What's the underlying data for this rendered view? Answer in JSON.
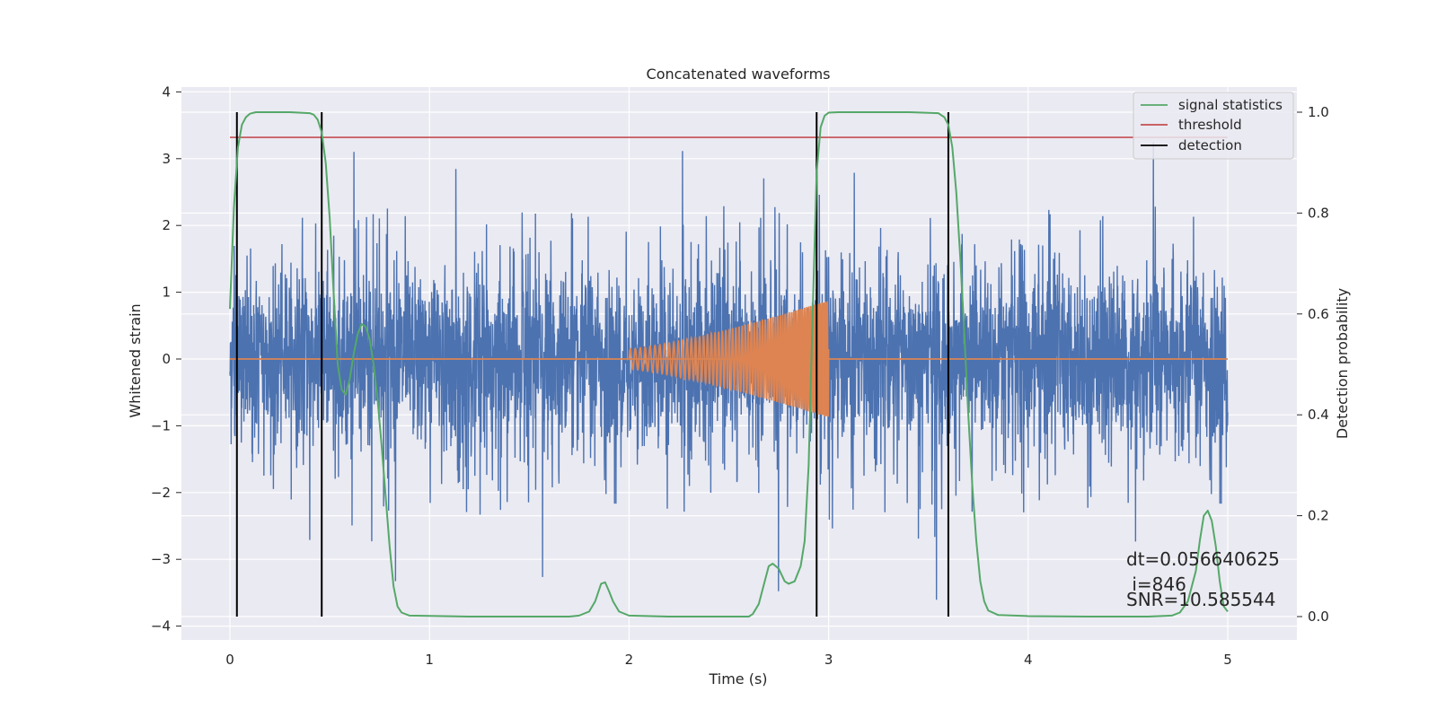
{
  "chart_data": {
    "type": "line",
    "title": "Concatenated waveforms",
    "xlabel": "Time (s)",
    "ylabel_left": "Whitened strain",
    "ylabel_right": "Detection probability",
    "xlim": [
      -0.25,
      5.35
    ],
    "ylim_left": [
      -4.2,
      4.1
    ],
    "ylim_right": [
      -0.05,
      1.035
    ],
    "x_ticks": [
      0,
      1,
      2,
      3,
      4,
      5
    ],
    "y_left_ticks": [
      -4,
      -3,
      -2,
      -1,
      0,
      1,
      2,
      3,
      4
    ],
    "y_right_ticks": [
      0.0,
      0.2,
      0.4,
      0.6,
      0.8,
      1.0
    ],
    "y_left_tick_labels": [
      "−4",
      "−3",
      "−2",
      "−1",
      "0",
      "1",
      "2",
      "3",
      "4"
    ],
    "y_right_tick_labels": [
      "0.0",
      "0.2",
      "0.4",
      "0.6",
      "0.8",
      "1.0"
    ],
    "grid": true,
    "legend_position": "top-right",
    "colors": {
      "background": "#eaeaf2",
      "grid": "#ffffff",
      "strain": "#4c72b0",
      "template": "#dd8452",
      "signal_statistics": "#55a868",
      "threshold": "#c44e52",
      "detection": "#000000"
    },
    "series": [
      {
        "name": "",
        "axis": "left",
        "kind": "noise",
        "x_range": [
          0,
          5
        ],
        "core_amplitude": 0.8,
        "typical_peak": 1.9,
        "max_peak": 3.7,
        "min_value": -3.8
      },
      {
        "name": "",
        "axis": "left",
        "kind": "chirp",
        "baseline_x": [
          0,
          5
        ],
        "baseline_y": 0,
        "chirp_x": [
          2.0,
          3.0
        ],
        "start_amplitude": 0.15,
        "end_amplitude": 0.88,
        "start_frequency_hz": 40,
        "end_frequency_hz": 115
      },
      {
        "name": "signal statistics",
        "axis": "right",
        "x": [
          0.0,
          0.02,
          0.04,
          0.06,
          0.08,
          0.1,
          0.13,
          0.2,
          0.3,
          0.4,
          0.42,
          0.44,
          0.46,
          0.48,
          0.5,
          0.52,
          0.54,
          0.56,
          0.58,
          0.6,
          0.62,
          0.64,
          0.66,
          0.68,
          0.7,
          0.72,
          0.74,
          0.76,
          0.78,
          0.8,
          0.82,
          0.84,
          0.86,
          0.9,
          1.2,
          1.5,
          1.7,
          1.75,
          1.8,
          1.83,
          1.86,
          1.88,
          1.9,
          1.92,
          1.95,
          2.0,
          2.2,
          2.4,
          2.6,
          2.62,
          2.65,
          2.68,
          2.7,
          2.72,
          2.75,
          2.78,
          2.8,
          2.83,
          2.86,
          2.88,
          2.9,
          2.92,
          2.94,
          2.96,
          2.98,
          3.0,
          3.05,
          3.2,
          3.4,
          3.55,
          3.58,
          3.6,
          3.62,
          3.64,
          3.66,
          3.68,
          3.7,
          3.72,
          3.74,
          3.76,
          3.78,
          3.8,
          3.85,
          4.0,
          4.3,
          4.6,
          4.72,
          4.76,
          4.8,
          4.84,
          4.86,
          4.88,
          4.9,
          4.92,
          4.94,
          4.96,
          4.98,
          5.0
        ],
        "y": [
          0.61,
          0.81,
          0.93,
          0.975,
          0.99,
          0.997,
          1.0,
          1.0,
          1.0,
          0.998,
          0.995,
          0.985,
          0.96,
          0.9,
          0.79,
          0.64,
          0.5,
          0.45,
          0.44,
          0.47,
          0.52,
          0.56,
          0.58,
          0.575,
          0.55,
          0.5,
          0.43,
          0.34,
          0.24,
          0.14,
          0.06,
          0.02,
          0.008,
          0.002,
          0.0,
          0.0,
          0.0,
          0.002,
          0.01,
          0.03,
          0.065,
          0.068,
          0.05,
          0.03,
          0.01,
          0.002,
          0.0,
          0.0,
          0.0,
          0.005,
          0.025,
          0.07,
          0.1,
          0.105,
          0.095,
          0.07,
          0.065,
          0.07,
          0.1,
          0.15,
          0.3,
          0.6,
          0.88,
          0.97,
          0.993,
          0.999,
          1.0,
          1.0,
          1.0,
          0.998,
          0.99,
          0.975,
          0.93,
          0.84,
          0.71,
          0.56,
          0.4,
          0.26,
          0.15,
          0.07,
          0.03,
          0.012,
          0.003,
          0.001,
          0.0,
          0.0,
          0.002,
          0.008,
          0.03,
          0.09,
          0.15,
          0.2,
          0.21,
          0.19,
          0.14,
          0.07,
          0.02,
          0.01
        ]
      },
      {
        "name": "threshold",
        "axis": "right",
        "x": [
          0,
          5
        ],
        "y": [
          0.95,
          0.95
        ]
      },
      {
        "name": "detection",
        "axis": "right",
        "kind": "vertical_lines",
        "x": [
          0.035,
          0.46,
          2.94,
          3.6
        ],
        "y_range": [
          0,
          1
        ]
      }
    ],
    "annotations": [
      "dt=0.056640625",
      " i=846",
      "SNR=10.585544"
    ]
  }
}
